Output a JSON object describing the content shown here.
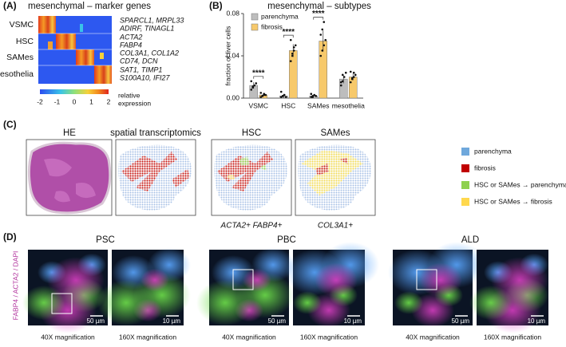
{
  "panel_a": {
    "label": "(A)",
    "title": "mesenchymal – marker genes",
    "rows": [
      {
        "name": "VSMC",
        "genes": [
          "SPARCL1, MRPL33",
          "ADIRF, TINAGL1"
        ]
      },
      {
        "name": "HSC",
        "genes": [
          "ACTA2",
          "FABP4"
        ]
      },
      {
        "name": "SAMes",
        "genes": [
          "COL3A1, COL1A2",
          "CD74, DCN"
        ]
      },
      {
        "name": "mesothelia",
        "genes": [
          "SAT1, TIMP1",
          "S100A10, IFI27"
        ]
      }
    ],
    "colorbar": {
      "lim": [
        -2,
        2
      ],
      "ticks": [
        -2,
        -1,
        0,
        1,
        2
      ],
      "label": [
        "relative",
        "expression"
      ]
    }
  },
  "chart_data": {
    "type": "bar",
    "panel_label": "(B)",
    "title": "mesenchymal – subtypes",
    "y_label": "fraction of liver cells",
    "categories": [
      "VSMC",
      "HSC",
      "SAMes",
      "mesothelia"
    ],
    "series": [
      {
        "name": "parenchyma",
        "color": "#bdbdbd",
        "values": [
          0.012,
          0.002,
          0.002,
          0.018
        ],
        "errors": [
          0.003,
          0.002,
          0.001,
          0.004
        ],
        "points": [
          [
            0.008,
            0.01,
            0.012,
            0.014,
            0.016,
            0.011
          ],
          [
            0.001,
            0.002,
            0.003,
            0.001,
            0.006,
            0.002
          ],
          [
            0.001,
            0.002,
            0.003,
            0.002,
            0.004,
            0.001
          ],
          [
            0.012,
            0.016,
            0.02,
            0.024,
            0.015,
            0.022
          ]
        ]
      },
      {
        "name": "fibrosis",
        "color": "#f7c96b",
        "values": [
          0.003,
          0.045,
          0.054,
          0.02
        ],
        "errors": [
          0.001,
          0.006,
          0.01,
          0.003
        ],
        "points": [
          [
            0.001,
            0.002,
            0.004,
            0.003,
            0.005,
            0.002,
            0.003
          ],
          [
            0.035,
            0.04,
            0.045,
            0.05,
            0.055,
            0.042,
            0.048
          ],
          [
            0.04,
            0.045,
            0.05,
            0.055,
            0.06,
            0.065,
            0.072
          ],
          [
            0.015,
            0.018,
            0.02,
            0.022,
            0.025,
            0.019,
            0.024
          ]
        ]
      }
    ],
    "significance": [
      "****",
      "****",
      "****",
      null
    ],
    "ylim": [
      0,
      0.08
    ],
    "yticks": [
      {
        "value": 0,
        "label": "0.00"
      },
      {
        "value": 0.04,
        "label": "0.04"
      },
      {
        "value": 0.08,
        "label": "0.08"
      }
    ],
    "legend": "upper left"
  },
  "panel_c": {
    "label": "(C)",
    "titles": [
      "HE",
      "spatial transcriptomics",
      "HSC",
      "SAMes"
    ],
    "captions": [
      "ACTA2+ FABP4+",
      "COL3A1+"
    ],
    "legend": [
      {
        "name": "parenchyma",
        "color": "#6fa8dc"
      },
      {
        "name": "fibrosis",
        "color": "#c00000"
      },
      {
        "name": "HSC or SAMes → parenchyma",
        "color": "#8fd14f"
      },
      {
        "name": "HSC or SAMes → fibrosis",
        "color": "#ffd84d"
      }
    ]
  },
  "panel_d": {
    "label": "(D)",
    "stain": "FABP4 / ACTA2 / DAPI",
    "groups": [
      {
        "name": "PSC",
        "captions": [
          "40X magnification",
          "160X magnification"
        ],
        "scales": [
          "50 µm",
          "10 µm"
        ]
      },
      {
        "name": "PBC",
        "captions": [
          "40X magnification",
          "160X magnification"
        ],
        "scales": [
          "50 µm",
          "10 µm"
        ]
      },
      {
        "name": "ALD",
        "captions": [
          "40X magnification",
          "160X magnification"
        ],
        "scales": [
          "50 µm",
          "10 µm"
        ]
      }
    ]
  }
}
